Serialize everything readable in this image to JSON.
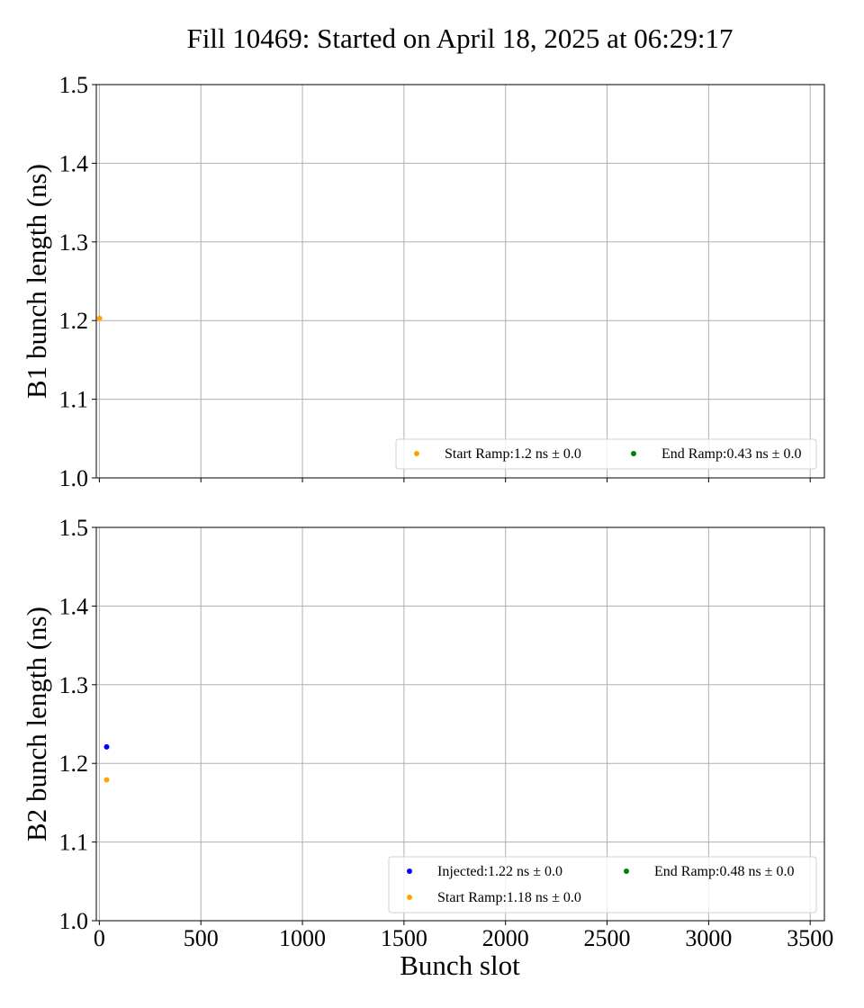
{
  "chart_data": {
    "type": "scatter",
    "title": "Fill 10469: Started on April 18, 2025 at 06:29:17",
    "xlabel": "Bunch slot",
    "xlim": [
      -15,
      3570
    ],
    "xticks": [
      0,
      500,
      1000,
      1500,
      2000,
      2500,
      3000,
      3500
    ],
    "grid": true,
    "panels": [
      {
        "ylabel": "B1 bunch length (ns)",
        "ylim": [
          1.0,
          1.5
        ],
        "yticks": [
          "1.0",
          "1.1",
          "1.2",
          "1.3",
          "1.4",
          "1.5"
        ],
        "show_xtick_labels": false,
        "legend_placement": "lower-right",
        "series": [
          {
            "name": "Start Ramp",
            "legend_label": "Start Ramp:1.2 ns ± 0.0",
            "color": "#ffa500",
            "points": [
              {
                "x": 1,
                "y": 1.203
              }
            ]
          },
          {
            "name": "End Ramp",
            "legend_label": "End Ramp:0.43 ns ± 0.0",
            "color": "#008000",
            "points": []
          }
        ]
      },
      {
        "ylabel": "B2 bunch length (ns)",
        "ylim": [
          1.0,
          1.5
        ],
        "yticks": [
          "1.0",
          "1.1",
          "1.2",
          "1.3",
          "1.4",
          "1.5"
        ],
        "show_xtick_labels": true,
        "legend_placement": "lower-right",
        "series": [
          {
            "name": "Injected",
            "legend_label": "Injected:1.22 ns ± 0.0",
            "color": "#0000ff",
            "points": [
              {
                "x": 36,
                "y": 1.221
              }
            ]
          },
          {
            "name": "Start Ramp",
            "legend_label": "Start Ramp:1.18 ns ± 0.0",
            "color": "#ffa500",
            "points": [
              {
                "x": 36,
                "y": 1.179
              }
            ]
          },
          {
            "name": "End Ramp",
            "legend_label": "End Ramp:0.48 ns ± 0.0",
            "color": "#008000",
            "points": []
          }
        ]
      }
    ]
  }
}
